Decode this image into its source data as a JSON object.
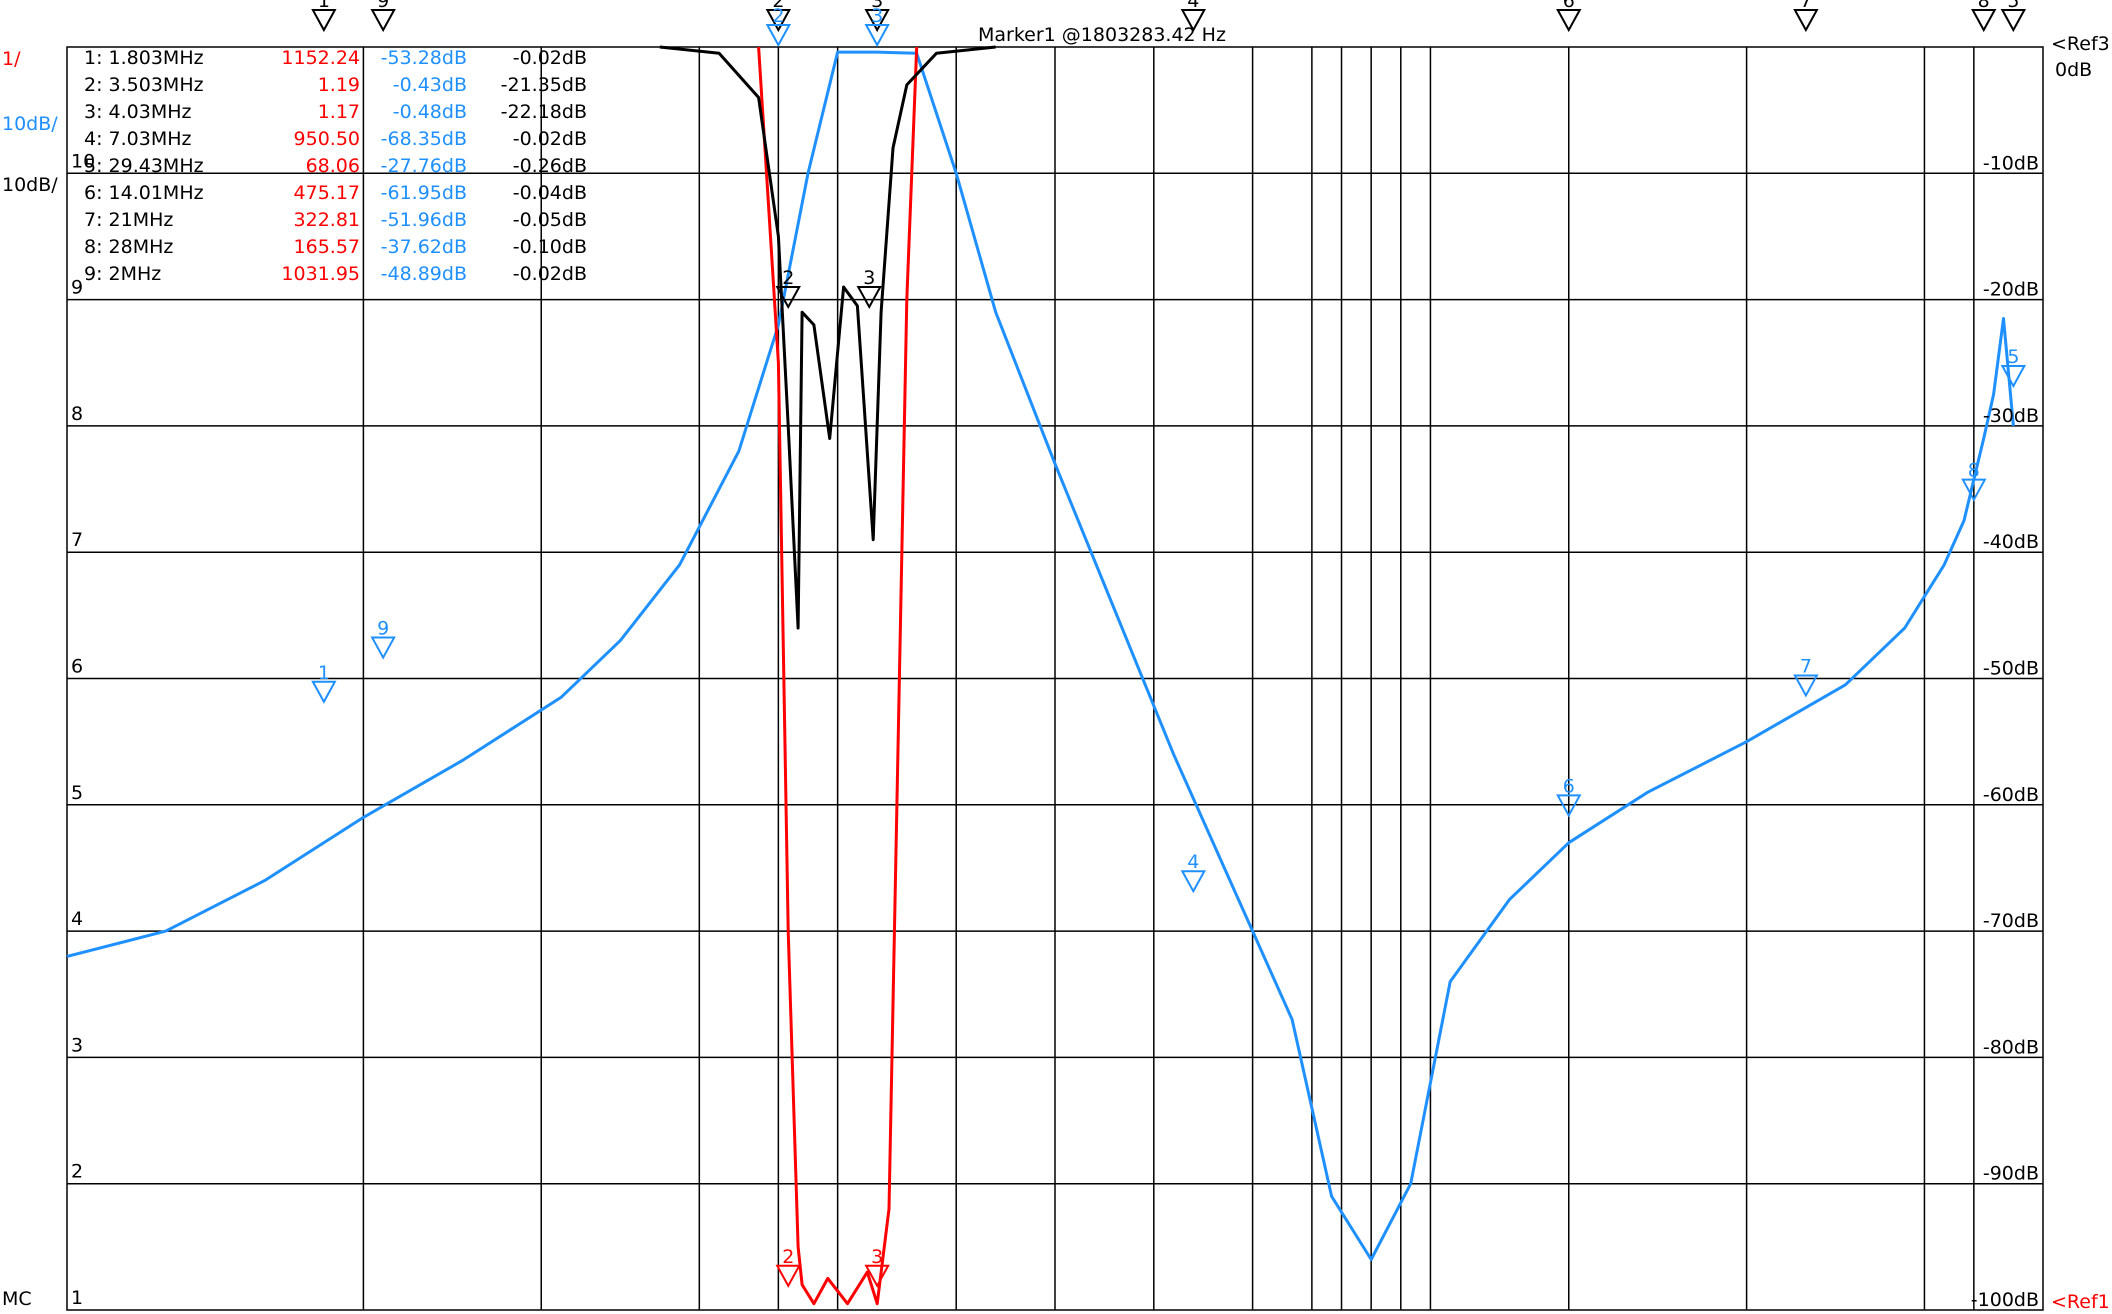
{
  "left_labels": {
    "trace1_scale": "1/",
    "trace2_scale": "10dB/",
    "trace3_scale": "10dB/",
    "mode": "MC"
  },
  "marker_header": "Marker1 @1803283.42 Hz",
  "markers": [
    {
      "label": "1: 1.803MHz",
      "red": "1152.24",
      "blue": "-53.28dB",
      "black": "-0.02dB"
    },
    {
      "label": "2: 3.503MHz",
      "red": "1.19",
      "blue": "-0.43dB",
      "black": "-21.35dB"
    },
    {
      "label": "3: 4.03MHz",
      "red": "1.17",
      "blue": "-0.48dB",
      "black": "-22.18dB"
    },
    {
      "label": "4: 7.03MHz",
      "red": "950.50",
      "blue": "-68.35dB",
      "black": "-0.02dB"
    },
    {
      "label": "5: 29.43MHz",
      "red": "68.06",
      "blue": "-27.76dB",
      "black": "-0.26dB"
    },
    {
      "label": "6: 14.01MHz",
      "red": "475.17",
      "blue": "-61.95dB",
      "black": "-0.04dB"
    },
    {
      "label": "7: 21MHz",
      "red": "322.81",
      "blue": "-51.96dB",
      "black": "-0.05dB"
    },
    {
      "label": "8: 28MHz",
      "red": "165.57",
      "blue": "-37.62dB",
      "black": "-0.10dB"
    },
    {
      "label": "9: 2MHz",
      "red": "1031.95",
      "blue": "-48.89dB",
      "black": "-0.02dB"
    }
  ],
  "chart_data": {
    "type": "line",
    "title": "",
    "xlabel": "",
    "ylabel": "",
    "grid": true,
    "right_axis_labels": [
      "-10dB",
      "-20dB",
      "-30dB",
      "-40dB",
      "-50dB",
      "-60dB",
      "-70dB",
      "-80dB",
      "-90dB",
      "-100dB"
    ],
    "ref_labels": {
      "top": "<Ref3",
      "top_value": "0dB",
      "bottom": "<Ref1"
    },
    "left_grid_labels": [
      "10",
      "9",
      "8",
      "7",
      "6",
      "5",
      "4",
      "3",
      "2",
      "1"
    ],
    "ylim": [
      -100,
      0
    ],
    "colors": {
      "blue": "#1e90ff",
      "red": "#ff0000",
      "black": "#000000",
      "grid": "#000000"
    },
    "marker_ids": {
      "top_black": [
        "1",
        "9",
        "2",
        "3",
        "4",
        "6",
        "7",
        "8",
        "5"
      ],
      "blue": [
        "1",
        "9",
        "2",
        "3",
        "4",
        "6",
        "7",
        "8",
        "5"
      ],
      "black_curve": [
        "2",
        "3"
      ],
      "red_curve": [
        "2",
        "3"
      ]
    },
    "series": [
      {
        "name": "",
        "color": "#1e90ff",
        "x_frac": [
          0.0,
          0.05,
          0.1,
          0.15,
          0.2,
          0.25,
          0.28,
          0.31,
          0.34,
          0.36,
          0.375,
          0.39,
          0.41,
          0.43,
          0.45,
          0.47,
          0.5,
          0.53,
          0.56,
          0.59,
          0.6,
          0.62,
          0.64,
          0.66,
          0.68,
          0.7,
          0.73,
          0.76,
          0.8,
          0.85,
          0.9,
          0.93,
          0.95,
          0.96,
          0.97,
          0.975,
          0.98,
          0.985
        ],
        "y_db": [
          -72.0,
          -70.0,
          -66.0,
          -61.0,
          -56.5,
          -51.5,
          -47.0,
          -41.0,
          -32.0,
          -22.0,
          -10.0,
          -0.4,
          -0.4,
          -0.5,
          -10.0,
          -21.0,
          -33.0,
          -44.5,
          -56.0,
          -66.5,
          -70.0,
          -77.0,
          -91.0,
          -96.0,
          -90.0,
          -74.0,
          -67.5,
          -63.0,
          -59.0,
          -55.0,
          -50.5,
          -46.0,
          -41.0,
          -37.5,
          -31.0,
          -27.5,
          -21.5,
          -30.0
        ]
      },
      {
        "name": "",
        "color": "#ff0000",
        "x_frac": [
          0.35,
          0.36,
          0.365,
          0.37,
          0.372,
          0.378,
          0.385,
          0.395,
          0.405,
          0.41,
          0.416,
          0.42,
          0.425,
          0.43
        ],
        "y_db": [
          0.0,
          -25.0,
          -70.0,
          -95.0,
          -98.0,
          -99.5,
          -97.5,
          -99.5,
          -97.0,
          -99.5,
          -92.0,
          -60.0,
          -20.0,
          0.0
        ]
      },
      {
        "name": "",
        "color": "#000000",
        "x_frac": [
          0.3,
          0.33,
          0.35,
          0.36,
          0.365,
          0.37,
          0.372,
          0.378,
          0.386,
          0.393,
          0.4,
          0.408,
          0.412,
          0.418,
          0.425,
          0.44,
          0.47
        ],
        "y_db": [
          0.0,
          -0.5,
          -4.0,
          -15.0,
          -30.0,
          -46.0,
          -21.0,
          -22.0,
          -31.0,
          -19.0,
          -20.5,
          -39.0,
          -21.0,
          -8.0,
          -3.0,
          -0.5,
          0.0
        ]
      }
    ]
  }
}
